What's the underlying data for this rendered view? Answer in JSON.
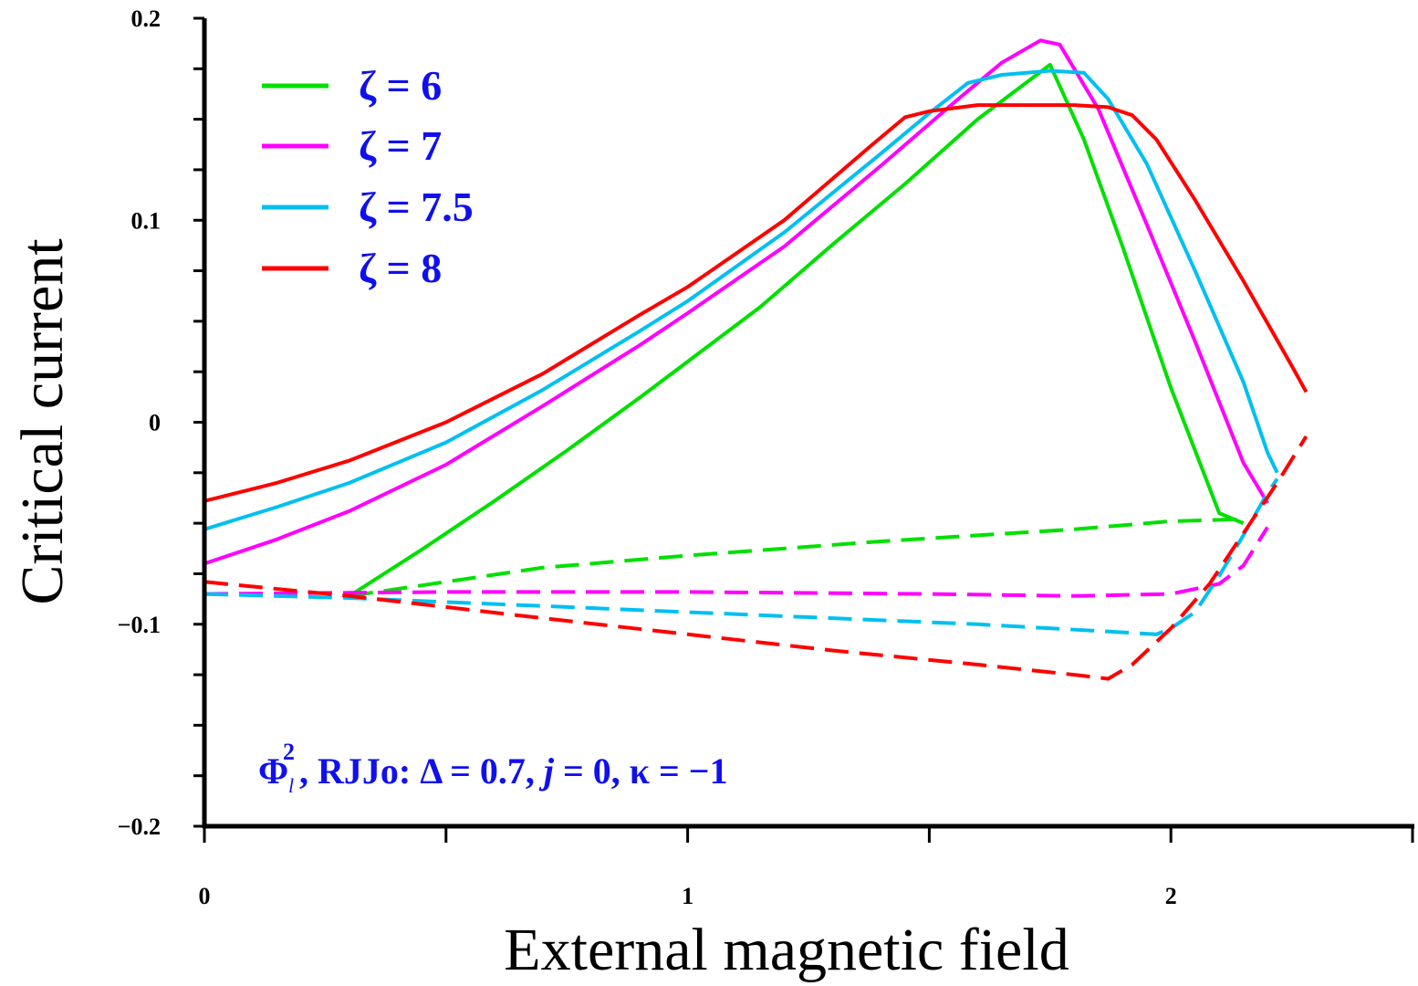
{
  "chart_data": {
    "type": "line",
    "xlabel": "External magnetic field",
    "ylabel": "Critical current",
    "xlim": [
      0,
      2.5
    ],
    "ylim": [
      -0.2,
      0.2
    ],
    "x_ticks": [
      {
        "value": 0,
        "label": "0"
      },
      {
        "value": 1,
        "label": "1"
      },
      {
        "value": 2,
        "label": "2"
      }
    ],
    "y_ticks": [
      {
        "value": -0.2,
        "label": "−0.2"
      },
      {
        "value": -0.1,
        "label": "−0.1"
      },
      {
        "value": 0,
        "label": "0"
      },
      {
        "value": 0.1,
        "label": "0.1"
      },
      {
        "value": 0.2,
        "label": "0.2"
      }
    ],
    "x_minor_step": 0.5,
    "y_minor_step": 0.025,
    "legend_position": "top-left",
    "annotation": {
      "phi": "Φ",
      "sup": "2",
      "sub": "l",
      "rest": ", RJJo: Δ = 0.7, ",
      "j": "j",
      "rest2": " = 0, κ = −1"
    },
    "series": [
      {
        "name": "ζ = 6",
        "color": "#00e000",
        "solid": [
          [
            0.3,
            -0.086
          ],
          [
            0.45,
            -0.063
          ],
          [
            0.6,
            -0.039
          ],
          [
            0.75,
            -0.014
          ],
          [
            0.9,
            0.012
          ],
          [
            1.0,
            0.03
          ],
          [
            1.15,
            0.057
          ],
          [
            1.3,
            0.088
          ],
          [
            1.45,
            0.118
          ],
          [
            1.6,
            0.15
          ],
          [
            1.75,
            0.177
          ],
          [
            1.82,
            0.14
          ],
          [
            1.9,
            0.087
          ],
          [
            2.0,
            0.017
          ],
          [
            2.1,
            -0.045
          ],
          [
            2.15,
            -0.05
          ]
        ],
        "dashed": [
          [
            0.3,
            -0.086
          ],
          [
            0.7,
            -0.072
          ],
          [
            1.0,
            -0.066
          ],
          [
            1.4,
            -0.059
          ],
          [
            1.8,
            -0.053
          ],
          [
            2.0,
            -0.049
          ],
          [
            2.15,
            -0.048
          ]
        ]
      },
      {
        "name": "ζ = 7",
        "color": "#ff00ff",
        "solid": [
          [
            0.0,
            -0.07
          ],
          [
            0.15,
            -0.058
          ],
          [
            0.3,
            -0.044
          ],
          [
            0.5,
            -0.021
          ],
          [
            0.7,
            0.008
          ],
          [
            0.9,
            0.038
          ],
          [
            1.0,
            0.054
          ],
          [
            1.2,
            0.087
          ],
          [
            1.4,
            0.127
          ],
          [
            1.55,
            0.158
          ],
          [
            1.65,
            0.178
          ],
          [
            1.73,
            0.189
          ],
          [
            1.77,
            0.187
          ],
          [
            1.85,
            0.155
          ],
          [
            1.95,
            0.098
          ],
          [
            2.05,
            0.04
          ],
          [
            2.15,
            -0.02
          ],
          [
            2.2,
            -0.04
          ]
        ],
        "dashed": [
          [
            0.0,
            -0.085
          ],
          [
            0.5,
            -0.084
          ],
          [
            1.0,
            -0.084
          ],
          [
            1.5,
            -0.085
          ],
          [
            1.8,
            -0.086
          ],
          [
            2.0,
            -0.085
          ],
          [
            2.1,
            -0.08
          ],
          [
            2.15,
            -0.071
          ],
          [
            2.2,
            -0.052
          ]
        ]
      },
      {
        "name": "ζ = 7.5",
        "color": "#00c0f0",
        "solid": [
          [
            0.0,
            -0.053
          ],
          [
            0.15,
            -0.042
          ],
          [
            0.3,
            -0.03
          ],
          [
            0.5,
            -0.01
          ],
          [
            0.7,
            0.016
          ],
          [
            0.9,
            0.045
          ],
          [
            1.0,
            0.06
          ],
          [
            1.2,
            0.094
          ],
          [
            1.4,
            0.133
          ],
          [
            1.5,
            0.153
          ],
          [
            1.58,
            0.168
          ],
          [
            1.65,
            0.172
          ],
          [
            1.75,
            0.174
          ],
          [
            1.82,
            0.173
          ],
          [
            1.87,
            0.16
          ],
          [
            1.95,
            0.128
          ],
          [
            2.05,
            0.075
          ],
          [
            2.15,
            0.02
          ],
          [
            2.2,
            -0.015
          ],
          [
            2.22,
            -0.025
          ]
        ],
        "dashed": [
          [
            0.0,
            -0.085
          ],
          [
            0.3,
            -0.087
          ],
          [
            0.7,
            -0.091
          ],
          [
            1.0,
            -0.094
          ],
          [
            1.3,
            -0.097
          ],
          [
            1.6,
            -0.1
          ],
          [
            1.9,
            -0.104
          ],
          [
            1.97,
            -0.105
          ],
          [
            2.0,
            -0.102
          ],
          [
            2.05,
            -0.094
          ],
          [
            2.1,
            -0.076
          ],
          [
            2.15,
            -0.056
          ],
          [
            2.2,
            -0.035
          ],
          [
            2.22,
            -0.028
          ]
        ]
      },
      {
        "name": "ζ = 8",
        "color": "#ff0000",
        "solid": [
          [
            0.0,
            -0.039
          ],
          [
            0.15,
            -0.03
          ],
          [
            0.3,
            -0.019
          ],
          [
            0.5,
            0.0
          ],
          [
            0.7,
            0.024
          ],
          [
            0.9,
            0.053
          ],
          [
            1.0,
            0.067
          ],
          [
            1.2,
            0.1
          ],
          [
            1.38,
            0.137
          ],
          [
            1.45,
            0.151
          ],
          [
            1.5,
            0.154
          ],
          [
            1.6,
            0.157
          ],
          [
            1.7,
            0.157
          ],
          [
            1.8,
            0.157
          ],
          [
            1.87,
            0.156
          ],
          [
            1.92,
            0.152
          ],
          [
            1.97,
            0.14
          ],
          [
            2.05,
            0.11
          ],
          [
            2.15,
            0.07
          ],
          [
            2.25,
            0.028
          ],
          [
            2.28,
            0.015
          ]
        ],
        "dashed": [
          [
            0.0,
            -0.079
          ],
          [
            0.3,
            -0.086
          ],
          [
            0.7,
            -0.097
          ],
          [
            1.0,
            -0.105
          ],
          [
            1.3,
            -0.113
          ],
          [
            1.6,
            -0.12
          ],
          [
            1.8,
            -0.125
          ],
          [
            1.87,
            -0.127
          ],
          [
            1.92,
            -0.12
          ],
          [
            2.0,
            -0.102
          ],
          [
            2.08,
            -0.08
          ],
          [
            2.15,
            -0.055
          ],
          [
            2.22,
            -0.03
          ],
          [
            2.28,
            -0.007
          ]
        ]
      }
    ]
  }
}
